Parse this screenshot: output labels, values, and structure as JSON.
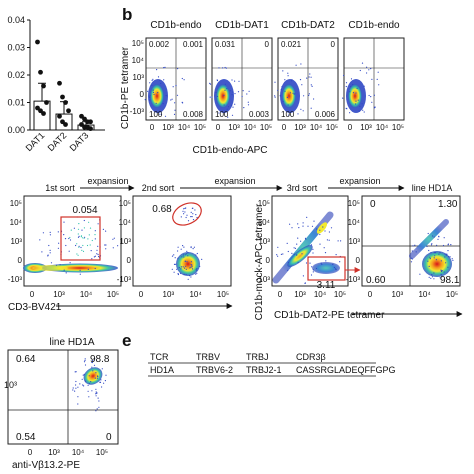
{
  "panel_labels": {
    "b": "b",
    "e": "e"
  },
  "panel_a": {
    "ytick_labels": [
      "0.04",
      "0.03",
      "0.02",
      "0.01",
      "0.00"
    ],
    "categories": [
      "DAT1",
      "DAT2",
      "DAT3"
    ],
    "values": [
      0.0105,
      0.0058,
      0.0018
    ],
    "errors": [
      0.0065,
      0.0045,
      0.0012
    ],
    "points": [
      [
        0.032,
        0.021,
        0.016,
        0.01,
        0.008,
        0.007,
        0.006
      ],
      [
        0.017,
        0.012,
        0.01,
        0.007,
        0.005,
        0.003,
        0.002
      ],
      [
        0.005,
        0.004,
        0.003,
        0.003,
        0.002,
        0.001,
        0.001,
        0.0005
      ]
    ]
  },
  "panel_b": {
    "plots": [
      {
        "title": "CD1b-endo",
        "ul": "0.002",
        "ur": "0.001",
        "ll": "100",
        "lr": "0.008"
      },
      {
        "title": "CD1b-DAT1",
        "ul": "0.031",
        "ur": "0",
        "ll": "100",
        "lr": "0.003"
      },
      {
        "title": "CD1b-DAT2",
        "ul": "0.021",
        "ur": "0",
        "ll": "100",
        "lr": "0.006"
      },
      {
        "title": "CD1b-endo",
        "ul": "",
        "ur": "",
        "ll": "",
        "lr": ""
      }
    ],
    "ylabel": "CD1b-PE tetramer",
    "xlabel": "CD1b-endo-APC",
    "yticks": [
      "10⁵",
      "10⁴",
      "10³",
      "0",
      "-10³"
    ],
    "xticks": [
      "0",
      "10³",
      "10⁴",
      "10⁵"
    ]
  },
  "panel_c": {
    "steps": {
      "first_sort": "1st sort",
      "expansion1": "expansion",
      "second_sort": "2nd sort",
      "expansion2": "expansion",
      "third_sort": "3rd sort",
      "expansion3": "expansion",
      "line": "line HD1A"
    },
    "gate_values": {
      "p1": "0.054",
      "p2": "0.68",
      "p3": "3.11",
      "p4_ul": "0",
      "p4_ur": "1.30",
      "p4_ll": "0.60",
      "p4_lr": "98.1"
    },
    "xlabel_left": "CD3-BV421",
    "xlabel_right": "CD1b-DAT2-PE tetramer",
    "ylabel_right": "CD1b-mock-APC tetramer",
    "yticks": [
      "10⁵",
      "10⁴",
      "10³",
      "0",
      "-10³"
    ],
    "xticks": [
      "0",
      "10³",
      "10⁴",
      "10⁵"
    ]
  },
  "panel_d": {
    "title": "line HD1A",
    "ul": "0.64",
    "ur": "98.8",
    "ll": "0.54",
    "lr": "0",
    "ytick": "10³",
    "xticks": [
      "0",
      "10³",
      "10⁴",
      "10⁵"
    ],
    "xlabel": "anti-Vβ13.2-PE"
  },
  "panel_e": {
    "headers": [
      "TCR",
      "TRBV",
      "TRBJ",
      "CDR3β"
    ],
    "row": [
      "HD1A",
      "TRBV6-2",
      "TRBJ2-1",
      "CASSRGLADEQFFGPG"
    ]
  }
}
